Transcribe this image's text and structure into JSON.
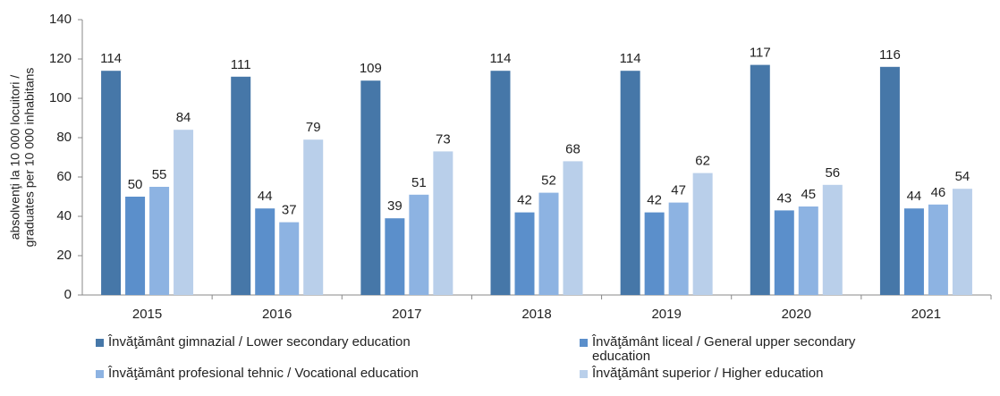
{
  "chart_data": {
    "type": "bar",
    "ylabel": [
      "absolvenţi la 10 000 locuitori /",
      "graduates per 10 000 inhabitans"
    ],
    "categories": [
      "2015",
      "2016",
      "2017",
      "2018",
      "2019",
      "2020",
      "2021"
    ],
    "series": [
      {
        "name": "Învăţământ gimnazial / Lower secondary education",
        "color": "#4677a8",
        "values": [
          114,
          111,
          109,
          114,
          114,
          117,
          116
        ]
      },
      {
        "name": "Învăţământ liceal / General upper secondary education",
        "color": "#5b8fcb",
        "values": [
          50,
          44,
          39,
          42,
          42,
          43,
          44
        ]
      },
      {
        "name": "Învăţământ profesional tehnic / Vocational education",
        "color": "#8db3e2",
        "values": [
          55,
          37,
          51,
          52,
          47,
          45,
          46
        ]
      },
      {
        "name": "Învăţământ superior / Higher education",
        "color": "#b9cfea",
        "values": [
          84,
          79,
          73,
          68,
          62,
          56,
          54
        ]
      }
    ],
    "ylim": [
      0,
      140
    ],
    "yticks": [
      0,
      20,
      40,
      60,
      80,
      100,
      120,
      140
    ],
    "grid": false
  }
}
